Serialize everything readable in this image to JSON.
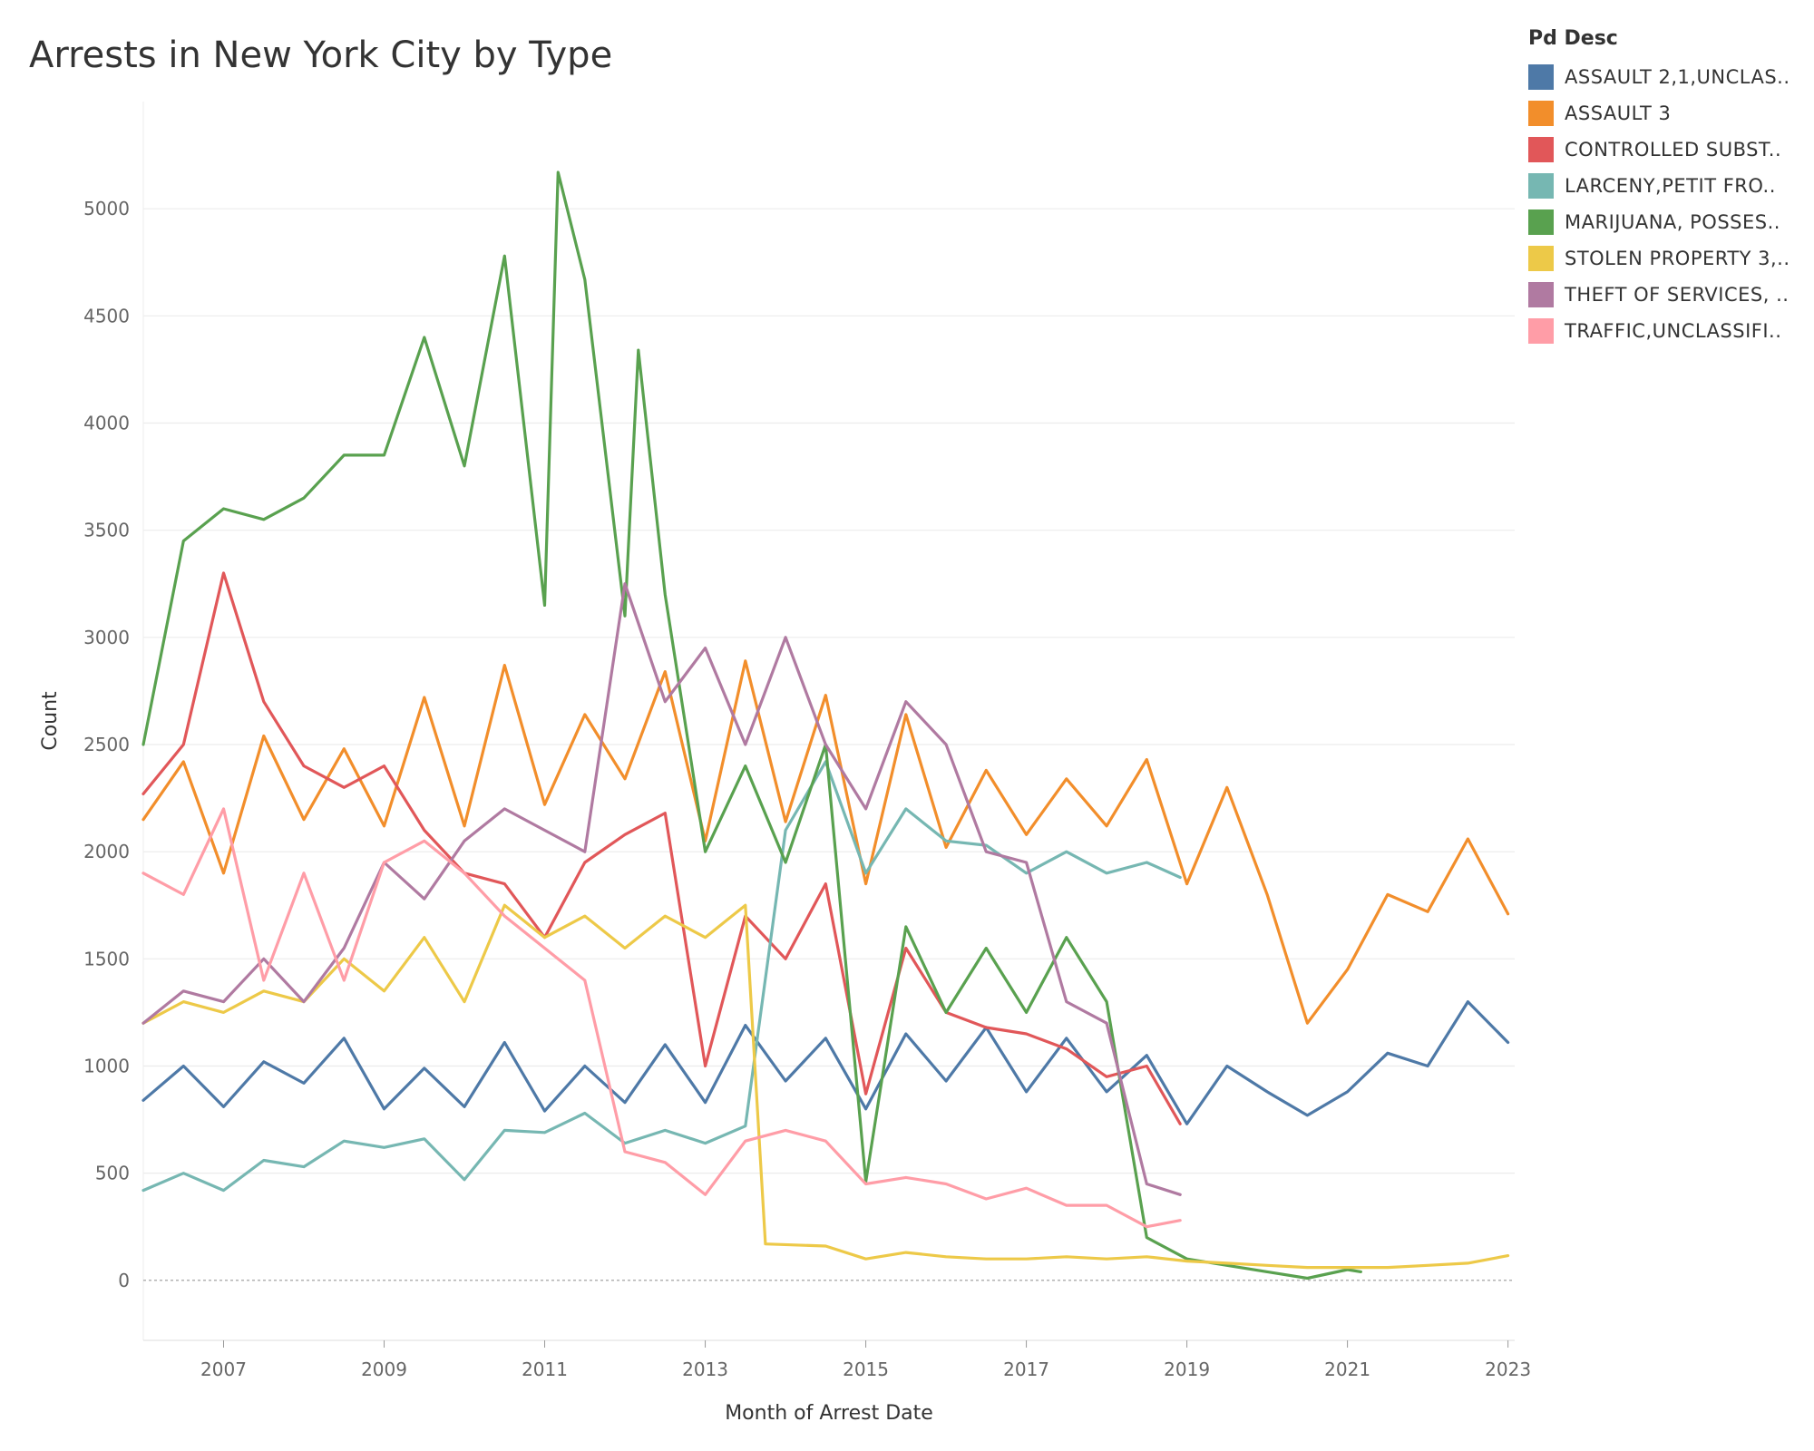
{
  "chart_data": {
    "type": "line",
    "title": "Arrests in New York City by Type",
    "xlabel": "Month of Arrest Date",
    "ylabel": "Count",
    "legend_title": "Pd Desc",
    "legend_position": "top-right",
    "grid": true,
    "xlim": [
      "2006-01",
      "2023-02"
    ],
    "ylim": [
      -280,
      5500
    ],
    "x_ticks": [
      "2007",
      "2009",
      "2011",
      "2013",
      "2015",
      "2017",
      "2019",
      "2021",
      "2023"
    ],
    "y_ticks": [
      0,
      500,
      1000,
      1500,
      2000,
      2500,
      3000,
      3500,
      4000,
      4500,
      5000
    ],
    "series": [
      {
        "name": "ASSAULT 2,1,UNCLAS..",
        "color": "#4e79a7",
        "points": [
          [
            "2006-01",
            840
          ],
          [
            "2006-07",
            1000
          ],
          [
            "2007-01",
            810
          ],
          [
            "2007-07",
            1020
          ],
          [
            "2008-01",
            920
          ],
          [
            "2008-07",
            1130
          ],
          [
            "2009-01",
            800
          ],
          [
            "2009-07",
            990
          ],
          [
            "2010-01",
            810
          ],
          [
            "2010-07",
            1110
          ],
          [
            "2011-01",
            790
          ],
          [
            "2011-07",
            1000
          ],
          [
            "2012-01",
            830
          ],
          [
            "2012-07",
            1100
          ],
          [
            "2013-01",
            830
          ],
          [
            "2013-07",
            1190
          ],
          [
            "2014-01",
            930
          ],
          [
            "2014-07",
            1130
          ],
          [
            "2015-01",
            800
          ],
          [
            "2015-07",
            1150
          ],
          [
            "2016-01",
            930
          ],
          [
            "2016-07",
            1180
          ],
          [
            "2017-01",
            880
          ],
          [
            "2017-07",
            1130
          ],
          [
            "2018-01",
            880
          ],
          [
            "2018-07",
            1050
          ],
          [
            "2019-01",
            730
          ],
          [
            "2019-07",
            1000
          ],
          [
            "2020-01",
            880
          ],
          [
            "2020-07",
            770
          ],
          [
            "2021-01",
            880
          ],
          [
            "2021-07",
            1060
          ],
          [
            "2022-01",
            1000
          ],
          [
            "2022-07",
            1300
          ],
          [
            "2023-01",
            1110
          ]
        ]
      },
      {
        "name": "ASSAULT 3",
        "color": "#f28e2b",
        "points": [
          [
            "2006-01",
            2150
          ],
          [
            "2006-07",
            2420
          ],
          [
            "2007-01",
            1900
          ],
          [
            "2007-07",
            2540
          ],
          [
            "2008-01",
            2150
          ],
          [
            "2008-07",
            2480
          ],
          [
            "2009-01",
            2120
          ],
          [
            "2009-07",
            2720
          ],
          [
            "2010-01",
            2120
          ],
          [
            "2010-07",
            2870
          ],
          [
            "2011-01",
            2220
          ],
          [
            "2011-07",
            2640
          ],
          [
            "2012-01",
            2340
          ],
          [
            "2012-07",
            2840
          ],
          [
            "2013-01",
            2050
          ],
          [
            "2013-07",
            2890
          ],
          [
            "2014-01",
            2140
          ],
          [
            "2014-07",
            2730
          ],
          [
            "2015-01",
            1850
          ],
          [
            "2015-07",
            2640
          ],
          [
            "2016-01",
            2020
          ],
          [
            "2016-07",
            2380
          ],
          [
            "2017-01",
            2080
          ],
          [
            "2017-07",
            2340
          ],
          [
            "2018-01",
            2120
          ],
          [
            "2018-07",
            2430
          ],
          [
            "2019-01",
            1850
          ],
          [
            "2019-07",
            2300
          ],
          [
            "2020-01",
            1800
          ],
          [
            "2020-07",
            1200
          ],
          [
            "2021-01",
            1450
          ],
          [
            "2021-07",
            1800
          ],
          [
            "2022-01",
            1720
          ],
          [
            "2022-07",
            2060
          ],
          [
            "2023-01",
            1710
          ]
        ]
      },
      {
        "name": "CONTROLLED SUBST..",
        "color": "#e15759",
        "points": [
          [
            "2006-01",
            2270
          ],
          [
            "2006-07",
            2500
          ],
          [
            "2007-01",
            3300
          ],
          [
            "2007-07",
            2700
          ],
          [
            "2008-01",
            2400
          ],
          [
            "2008-07",
            2300
          ],
          [
            "2009-01",
            2400
          ],
          [
            "2009-07",
            2100
          ],
          [
            "2010-01",
            1900
          ],
          [
            "2010-07",
            1850
          ],
          [
            "2011-01",
            1600
          ],
          [
            "2011-07",
            1950
          ],
          [
            "2012-01",
            2080
          ],
          [
            "2012-07",
            2180
          ],
          [
            "2013-01",
            1000
          ],
          [
            "2013-07",
            1700
          ],
          [
            "2014-01",
            1500
          ],
          [
            "2014-07",
            1850
          ],
          [
            "2015-01",
            870
          ],
          [
            "2015-07",
            1550
          ],
          [
            "2016-01",
            1250
          ],
          [
            "2016-07",
            1180
          ],
          [
            "2017-01",
            1150
          ],
          [
            "2017-07",
            1080
          ],
          [
            "2018-01",
            950
          ],
          [
            "2018-07",
            1000
          ],
          [
            "2018-12",
            730
          ]
        ]
      },
      {
        "name": "LARCENY,PETIT FRO..",
        "color": "#76b7b2",
        "points": [
          [
            "2006-01",
            420
          ],
          [
            "2006-07",
            500
          ],
          [
            "2007-01",
            420
          ],
          [
            "2007-07",
            560
          ],
          [
            "2008-01",
            530
          ],
          [
            "2008-07",
            650
          ],
          [
            "2009-01",
            620
          ],
          [
            "2009-07",
            660
          ],
          [
            "2010-01",
            470
          ],
          [
            "2010-07",
            700
          ],
          [
            "2011-01",
            690
          ],
          [
            "2011-07",
            780
          ],
          [
            "2012-01",
            640
          ],
          [
            "2012-07",
            700
          ],
          [
            "2013-01",
            640
          ],
          [
            "2013-07",
            720
          ],
          [
            "2014-01",
            2100
          ],
          [
            "2014-07",
            2420
          ],
          [
            "2015-01",
            1900
          ],
          [
            "2015-07",
            2200
          ],
          [
            "2016-01",
            2050
          ],
          [
            "2016-07",
            2030
          ],
          [
            "2017-01",
            1900
          ],
          [
            "2017-07",
            2000
          ],
          [
            "2018-01",
            1900
          ],
          [
            "2018-07",
            1950
          ],
          [
            "2018-12",
            1880
          ]
        ]
      },
      {
        "name": "MARIJUANA, POSSES..",
        "color": "#59a14f",
        "points": [
          [
            "2006-01",
            2500
          ],
          [
            "2006-07",
            3450
          ],
          [
            "2007-01",
            3600
          ],
          [
            "2007-07",
            3550
          ],
          [
            "2008-01",
            3650
          ],
          [
            "2008-07",
            3850
          ],
          [
            "2009-01",
            3850
          ],
          [
            "2009-07",
            4400
          ],
          [
            "2010-01",
            3800
          ],
          [
            "2010-07",
            4780
          ],
          [
            "2011-01",
            3150
          ],
          [
            "2011-03",
            5170
          ],
          [
            "2011-07",
            4670
          ],
          [
            "2012-01",
            3100
          ],
          [
            "2012-03",
            4340
          ],
          [
            "2012-07",
            3200
          ],
          [
            "2013-01",
            2000
          ],
          [
            "2013-07",
            2400
          ],
          [
            "2014-01",
            1950
          ],
          [
            "2014-07",
            2500
          ],
          [
            "2015-01",
            460
          ],
          [
            "2015-07",
            1650
          ],
          [
            "2016-01",
            1250
          ],
          [
            "2016-07",
            1550
          ],
          [
            "2017-01",
            1250
          ],
          [
            "2017-07",
            1600
          ],
          [
            "2018-01",
            1300
          ],
          [
            "2018-07",
            200
          ],
          [
            "2019-01",
            100
          ],
          [
            "2019-07",
            70
          ],
          [
            "2020-01",
            40
          ],
          [
            "2020-07",
            10
          ],
          [
            "2021-01",
            50
          ],
          [
            "2021-03",
            40
          ]
        ]
      },
      {
        "name": "STOLEN PROPERTY 3,..",
        "color": "#edc948",
        "points": [
          [
            "2006-01",
            1200
          ],
          [
            "2006-07",
            1300
          ],
          [
            "2007-01",
            1250
          ],
          [
            "2007-07",
            1350
          ],
          [
            "2008-01",
            1300
          ],
          [
            "2008-07",
            1500
          ],
          [
            "2009-01",
            1350
          ],
          [
            "2009-07",
            1600
          ],
          [
            "2010-01",
            1300
          ],
          [
            "2010-07",
            1750
          ],
          [
            "2011-01",
            1600
          ],
          [
            "2011-07",
            1700
          ],
          [
            "2012-01",
            1550
          ],
          [
            "2012-07",
            1700
          ],
          [
            "2013-01",
            1600
          ],
          [
            "2013-07",
            1750
          ],
          [
            "2013-10",
            170
          ],
          [
            "2014-07",
            160
          ],
          [
            "2015-01",
            100
          ],
          [
            "2015-07",
            130
          ],
          [
            "2016-01",
            110
          ],
          [
            "2016-07",
            100
          ],
          [
            "2017-01",
            100
          ],
          [
            "2017-07",
            110
          ],
          [
            "2018-01",
            100
          ],
          [
            "2018-07",
            110
          ],
          [
            "2019-01",
            90
          ],
          [
            "2019-07",
            80
          ],
          [
            "2020-01",
            70
          ],
          [
            "2020-07",
            60
          ],
          [
            "2021-01",
            60
          ],
          [
            "2021-07",
            60
          ],
          [
            "2022-01",
            70
          ],
          [
            "2022-07",
            80
          ],
          [
            "2023-01",
            115
          ]
        ]
      },
      {
        "name": "THEFT OF SERVICES, ..",
        "color": "#b07aa1",
        "points": [
          [
            "2006-01",
            1200
          ],
          [
            "2006-07",
            1350
          ],
          [
            "2007-01",
            1300
          ],
          [
            "2007-07",
            1500
          ],
          [
            "2008-01",
            1300
          ],
          [
            "2008-07",
            1550
          ],
          [
            "2009-01",
            1950
          ],
          [
            "2009-07",
            1780
          ],
          [
            "2010-01",
            2050
          ],
          [
            "2010-07",
            2200
          ],
          [
            "2011-01",
            2100
          ],
          [
            "2011-07",
            2000
          ],
          [
            "2012-01",
            3250
          ],
          [
            "2012-07",
            2700
          ],
          [
            "2013-01",
            2950
          ],
          [
            "2013-07",
            2500
          ],
          [
            "2014-01",
            3000
          ],
          [
            "2014-07",
            2500
          ],
          [
            "2015-01",
            2200
          ],
          [
            "2015-07",
            2700
          ],
          [
            "2016-01",
            2500
          ],
          [
            "2016-07",
            2000
          ],
          [
            "2017-01",
            1950
          ],
          [
            "2017-07",
            1300
          ],
          [
            "2018-01",
            1200
          ],
          [
            "2018-07",
            450
          ],
          [
            "2018-12",
            400
          ]
        ]
      },
      {
        "name": "TRAFFIC,UNCLASSIFI..",
        "color": "#ff9da7",
        "points": [
          [
            "2006-01",
            1900
          ],
          [
            "2006-07",
            1800
          ],
          [
            "2007-01",
            2200
          ],
          [
            "2007-07",
            1400
          ],
          [
            "2008-01",
            1900
          ],
          [
            "2008-07",
            1400
          ],
          [
            "2009-01",
            1950
          ],
          [
            "2009-07",
            2050
          ],
          [
            "2010-01",
            1900
          ],
          [
            "2010-07",
            1700
          ],
          [
            "2011-01",
            1550
          ],
          [
            "2011-07",
            1400
          ],
          [
            "2012-01",
            600
          ],
          [
            "2012-07",
            550
          ],
          [
            "2013-01",
            400
          ],
          [
            "2013-07",
            650
          ],
          [
            "2014-01",
            700
          ],
          [
            "2014-07",
            650
          ],
          [
            "2015-01",
            450
          ],
          [
            "2015-07",
            480
          ],
          [
            "2016-01",
            450
          ],
          [
            "2016-07",
            380
          ],
          [
            "2017-01",
            430
          ],
          [
            "2017-07",
            350
          ],
          [
            "2018-01",
            350
          ],
          [
            "2018-07",
            250
          ],
          [
            "2018-12",
            280
          ]
        ]
      }
    ]
  }
}
